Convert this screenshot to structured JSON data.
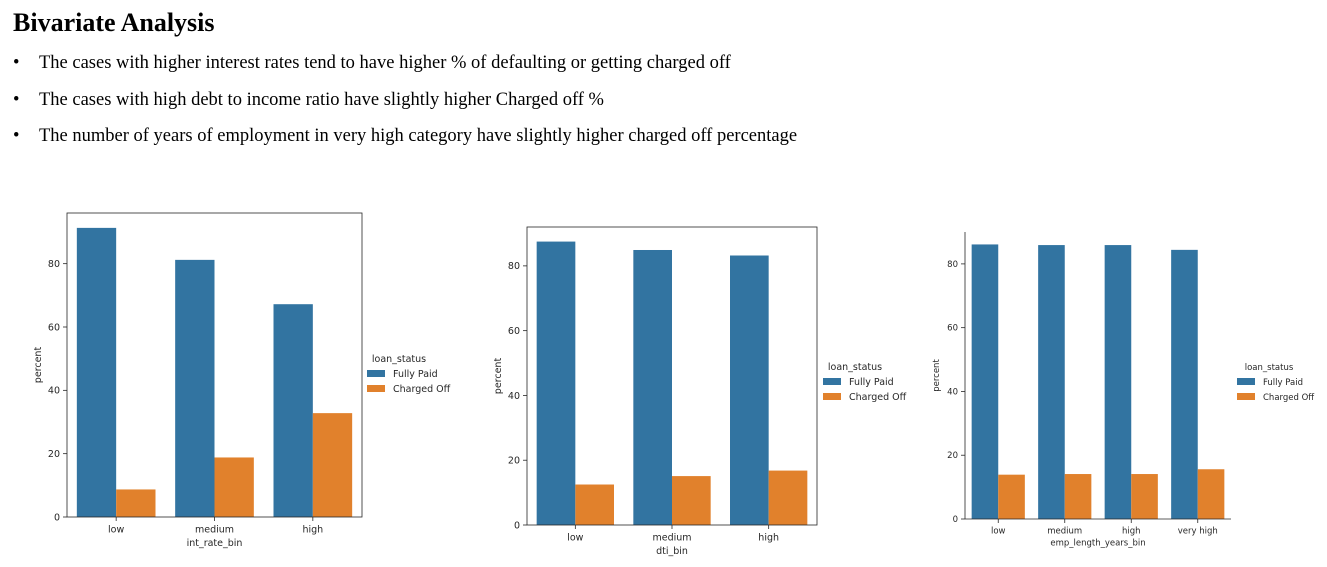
{
  "slide": {
    "title": "Bivariate Analysis",
    "bullet_char": "•",
    "bullets": [
      "The cases with higher interest rates tend to have higher % of defaulting or getting charged off",
      "The cases with high debt to income ratio have slightly higher Charged off %",
      "The number of years of employment in very high category have slightly higher charged off percentage"
    ]
  },
  "colors": {
    "fully_paid": "#3274a1",
    "charged_off": "#e1812c"
  },
  "chart_data": [
    {
      "type": "bar",
      "categories": [
        "low",
        "medium",
        "high"
      ],
      "series": [
        {
          "name": "Fully Paid",
          "values": [
            91.3,
            81.2,
            67.2
          ]
        },
        {
          "name": "Charged Off",
          "values": [
            8.7,
            18.8,
            32.8
          ]
        }
      ],
      "xlabel": "int_rate_bin",
      "ylabel": "percent",
      "ylim": [
        0,
        96
      ],
      "yticks": [
        0,
        20,
        40,
        60,
        80
      ],
      "legend_title": "loan_status",
      "legend_placement": "right",
      "grid": false
    },
    {
      "type": "bar",
      "categories": [
        "low",
        "medium",
        "high"
      ],
      "series": [
        {
          "name": "Fully Paid",
          "values": [
            87.5,
            84.9,
            83.2
          ]
        },
        {
          "name": "Charged Off",
          "values": [
            12.5,
            15.1,
            16.8
          ]
        }
      ],
      "xlabel": "dti_bin",
      "ylabel": "percent",
      "ylim": [
        0,
        92
      ],
      "yticks": [
        0,
        20,
        40,
        60,
        80
      ],
      "legend_title": "loan_status",
      "legend_placement": "right",
      "grid": false
    },
    {
      "type": "bar",
      "categories": [
        "low",
        "medium",
        "high",
        "very high"
      ],
      "series": [
        {
          "name": "Fully Paid",
          "values": [
            86.1,
            85.9,
            85.9,
            84.4
          ]
        },
        {
          "name": "Charged Off",
          "values": [
            13.9,
            14.1,
            14.1,
            15.6
          ]
        }
      ],
      "xlabel": "emp_length_years_bin",
      "ylabel": "percent",
      "ylim": [
        0,
        90
      ],
      "yticks": [
        0,
        20,
        40,
        60,
        80
      ],
      "legend_title": "loan_status",
      "legend_placement": "right",
      "grid": false
    }
  ]
}
